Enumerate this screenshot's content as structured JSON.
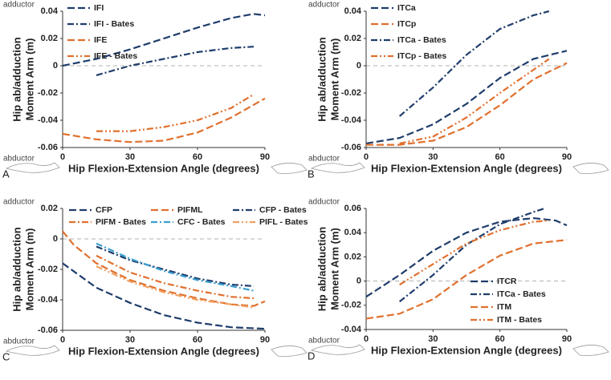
{
  "chart_data": [
    {
      "type": "line",
      "label": "A",
      "annotations": [
        "adductor",
        "abductor"
      ],
      "legend": "upper left",
      "xlabel": "Hip Flexion-Extension Angle (degrees)",
      "ylabel": [
        "Hip ab/adduction",
        "Moment Arm (m)"
      ],
      "xlim": [
        0,
        90
      ],
      "xticks": [
        0,
        30,
        60,
        90
      ],
      "ylim": [
        -0.06,
        0.04
      ],
      "yticks": [
        -0.06,
        -0.04,
        -0.02,
        0,
        0.02,
        0.04
      ],
      "zero_line": true,
      "series": [
        {
          "name": "IFI",
          "color": "#1f3d6b",
          "dash": "dash",
          "x": [
            0,
            15,
            30,
            45,
            60,
            75,
            85,
            90
          ],
          "values": [
            0,
            0.005,
            0.012,
            0.02,
            0.028,
            0.035,
            0.038,
            0.037
          ]
        },
        {
          "name": "IFI - Bates",
          "color": "#1f3d6b",
          "dash": "dashdot",
          "x": [
            15,
            30,
            45,
            60,
            75,
            85
          ],
          "values": [
            -0.007,
            0,
            0.005,
            0.01,
            0.013,
            0.014
          ]
        },
        {
          "name": "IFE",
          "color": "#e0702e",
          "dash": "dash",
          "x": [
            0,
            15,
            30,
            45,
            60,
            75,
            90
          ],
          "values": [
            -0.05,
            -0.054,
            -0.056,
            -0.055,
            -0.049,
            -0.038,
            -0.024
          ]
        },
        {
          "name": "IFE - Bates",
          "color": "#e0702e",
          "dash": "dashdotdot",
          "x": [
            15,
            30,
            45,
            60,
            75,
            85
          ],
          "values": [
            -0.048,
            -0.048,
            -0.045,
            -0.04,
            -0.031,
            -0.021
          ]
        }
      ]
    },
    {
      "type": "line",
      "label": "B",
      "annotations": [
        "adductor",
        "abductor"
      ],
      "legend": "upper left",
      "xlabel": "Hip Flexion-Extension Angle (degrees)",
      "ylabel": [
        "Hip ab/adduction",
        "Moment Arm (m)"
      ],
      "xlim": [
        0,
        90
      ],
      "xticks": [
        0,
        30,
        60,
        90
      ],
      "ylim": [
        -0.06,
        0.04
      ],
      "yticks": [
        -0.06,
        -0.04,
        -0.02,
        0,
        0.02,
        0.04
      ],
      "zero_line": true,
      "series": [
        {
          "name": "ITCa",
          "color": "#1f3d6b",
          "dash": "dash",
          "x": [
            0,
            15,
            30,
            45,
            60,
            75,
            90
          ],
          "values": [
            -0.057,
            -0.053,
            -0.043,
            -0.028,
            -0.009,
            0.005,
            0.011
          ]
        },
        {
          "name": "ITCp",
          "color": "#e0702e",
          "dash": "dash",
          "x": [
            0,
            15,
            30,
            45,
            60,
            75,
            90
          ],
          "values": [
            -0.058,
            -0.058,
            -0.055,
            -0.045,
            -0.029,
            -0.01,
            0.002
          ]
        },
        {
          "name": "ITCa - Bates",
          "color": "#1f3d6b",
          "dash": "dashdot",
          "x": [
            15,
            30,
            45,
            60,
            75,
            82
          ],
          "values": [
            -0.037,
            -0.016,
            0.008,
            0.027,
            0.037,
            0.04
          ]
        },
        {
          "name": "ITCp - Bates",
          "color": "#e0702e",
          "dash": "dashdotdot",
          "x": [
            15,
            30,
            45,
            60,
            75,
            82
          ],
          "values": [
            -0.057,
            -0.052,
            -0.038,
            -0.02,
            -0.003,
            0.005
          ]
        }
      ]
    },
    {
      "type": "line",
      "label": "C",
      "annotations": [
        "adductor",
        "abductor"
      ],
      "legend": "upper center",
      "xlabel": "Hip Flexion-Extension Angle (degrees)",
      "ylabel": [
        "Hip ab/adduction",
        "Moment Arm (m)"
      ],
      "xlim": [
        0,
        90
      ],
      "xticks": [
        0,
        30,
        60,
        90
      ],
      "ylim": [
        -0.06,
        0.02
      ],
      "yticks": [
        -0.06,
        -0.04,
        -0.02,
        0,
        0.02
      ],
      "zero_line": true,
      "series": [
        {
          "name": "CFP",
          "color": "#1f3d6b",
          "dash": "dash",
          "x": [
            0,
            15,
            30,
            45,
            60,
            75,
            90
          ],
          "values": [
            -0.016,
            -0.032,
            -0.042,
            -0.05,
            -0.055,
            -0.058,
            -0.059
          ]
        },
        {
          "name": "PIFML",
          "color": "#e0702e",
          "dash": "dash",
          "x": [
            0,
            5,
            15,
            30,
            45,
            60,
            75,
            85,
            90
          ],
          "values": [
            0.005,
            -0.004,
            -0.016,
            -0.027,
            -0.034,
            -0.039,
            -0.043,
            -0.044,
            -0.041
          ]
        },
        {
          "name": "CFP - Bates",
          "color": "#1f3d6b",
          "dash": "dashdot",
          "x": [
            15,
            30,
            45,
            60,
            75,
            85
          ],
          "values": [
            -0.005,
            -0.014,
            -0.02,
            -0.026,
            -0.03,
            -0.031
          ]
        },
        {
          "name": "PIFM - Bates",
          "color": "#e0702e",
          "dash": "dashdot",
          "x": [
            15,
            30,
            45,
            60,
            75,
            85
          ],
          "values": [
            -0.011,
            -0.022,
            -0.029,
            -0.034,
            -0.038,
            -0.039
          ]
        },
        {
          "name": "CFC - Bates",
          "color": "#3a9fd0",
          "dash": "dashdot",
          "x": [
            15,
            30,
            45,
            60,
            75,
            85
          ],
          "values": [
            -0.003,
            -0.013,
            -0.021,
            -0.027,
            -0.031,
            -0.034
          ]
        },
        {
          "name": "PIFL - Bates",
          "color": "#f0a060",
          "dash": "dashdotdot",
          "x": [
            15,
            30,
            45,
            60,
            75,
            85
          ],
          "values": [
            -0.018,
            -0.028,
            -0.035,
            -0.04,
            -0.043,
            -0.045
          ]
        }
      ]
    },
    {
      "type": "line",
      "label": "D",
      "annotations": [
        "adductor",
        "abductor"
      ],
      "legend": "lower right",
      "xlabel": "Hip Flexion-Extension Angle (degrees)",
      "ylabel": [
        "Hip ab/adduction",
        "Moment Arm (m)"
      ],
      "xlim": [
        0,
        90
      ],
      "xticks": [
        0,
        30,
        60,
        90
      ],
      "ylim": [
        -0.04,
        0.06
      ],
      "yticks": [
        -0.04,
        -0.02,
        0,
        0.02,
        0.04,
        0.06
      ],
      "zero_line": true,
      "series": [
        {
          "name": "ITCR",
          "color": "#1f3d6b",
          "dash": "dash",
          "x": [
            0,
            15,
            30,
            45,
            60,
            75,
            85,
            90
          ],
          "values": [
            -0.013,
            0.005,
            0.025,
            0.04,
            0.049,
            0.052,
            0.05,
            0.046
          ]
        },
        {
          "name": "ITCa - Bates",
          "color": "#1f3d6b",
          "dash": "dashdot",
          "x": [
            15,
            30,
            45,
            60,
            75,
            80
          ],
          "values": [
            -0.017,
            0.005,
            0.03,
            0.047,
            0.057,
            0.06
          ]
        },
        {
          "name": "ITM",
          "color": "#e0702e",
          "dash": "dash",
          "x": [
            0,
            15,
            30,
            45,
            60,
            75,
            90
          ],
          "values": [
            -0.031,
            -0.027,
            -0.015,
            0.005,
            0.021,
            0.031,
            0.034
          ]
        },
        {
          "name": "ITM - Bates",
          "color": "#e0702e",
          "dash": "dashdotdot",
          "x": [
            15,
            30,
            45,
            60,
            75,
            82
          ],
          "values": [
            -0.003,
            0.014,
            0.031,
            0.042,
            0.049,
            0.05
          ]
        }
      ]
    }
  ]
}
